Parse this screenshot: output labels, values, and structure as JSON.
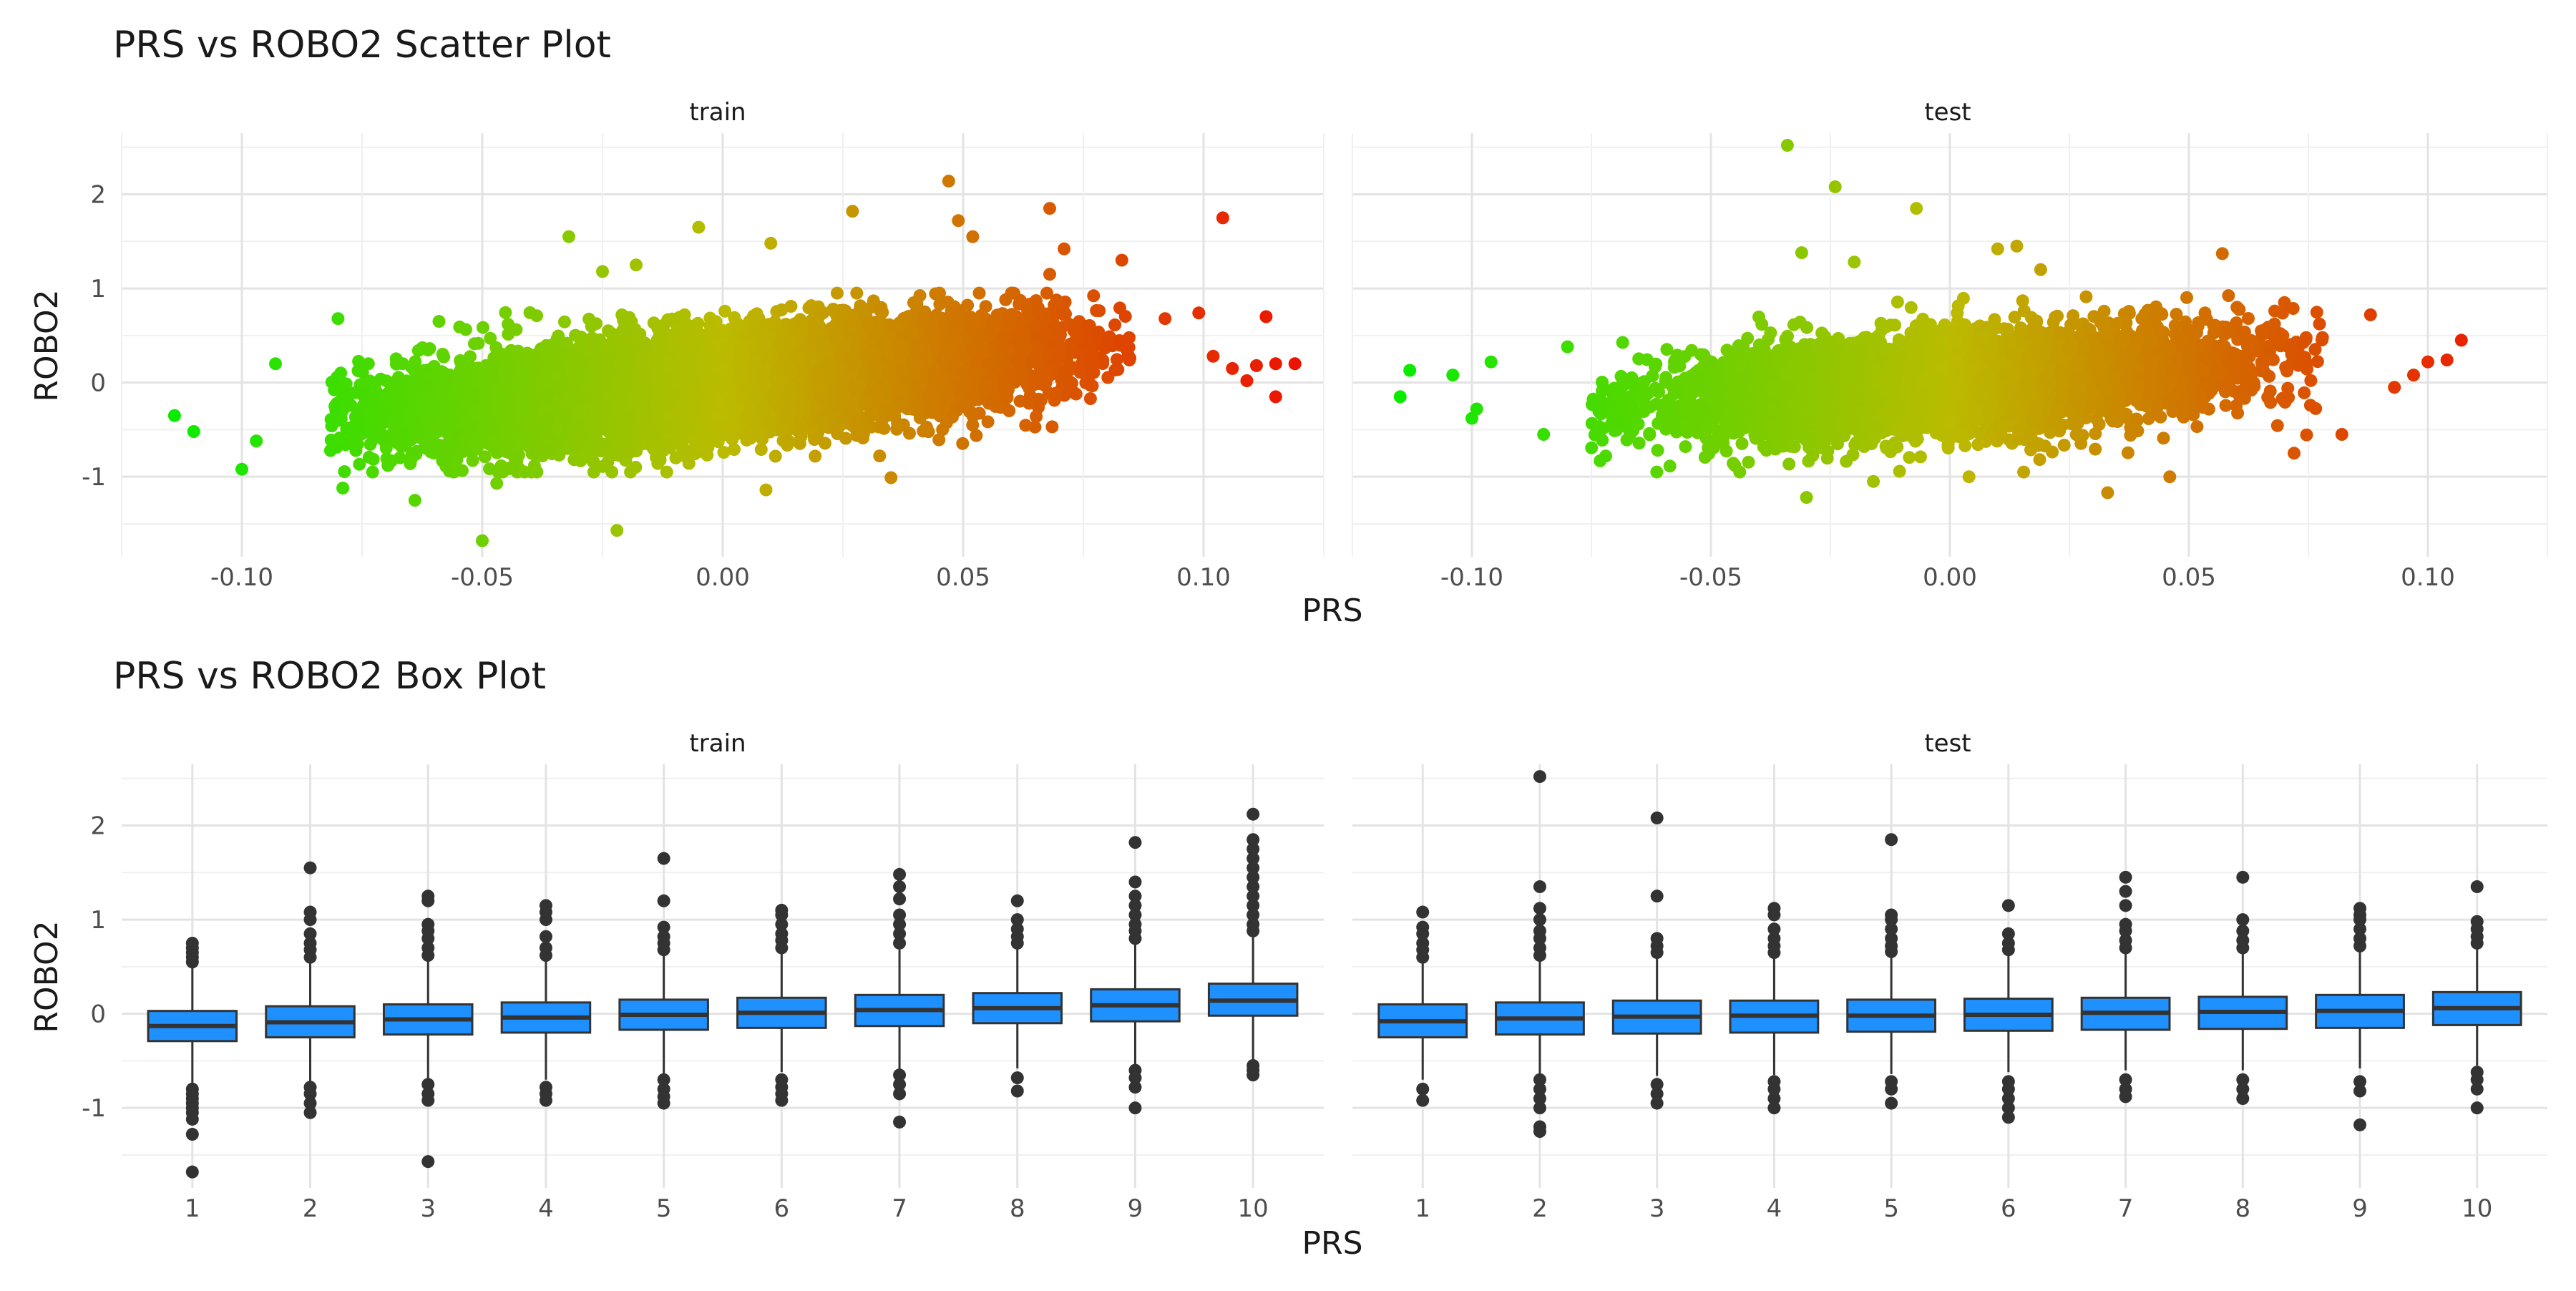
{
  "chart_data": [
    {
      "type": "scatter",
      "title": "PRS vs ROBO2 Scatter Plot",
      "xlabel": "PRS",
      "ylabel": "ROBO2",
      "xlim": [
        -0.125,
        0.125
      ],
      "ylim": [
        -1.85,
        2.65
      ],
      "x_ticks": [
        -0.1,
        -0.05,
        0.0,
        0.05,
        0.1
      ],
      "x_tick_labels": [
        "-0.10",
        "-0.05",
        "0.00",
        "0.05",
        "0.10"
      ],
      "y_ticks": [
        -1,
        0,
        1,
        2
      ],
      "y_tick_labels": [
        "-1",
        "0",
        "1",
        "2"
      ],
      "color_gradient": {
        "low": "#00ee00",
        "mid": "#bbbb00",
        "high": "#ee1100"
      },
      "grid": true,
      "facets": [
        {
          "label": "train",
          "cloud": {
            "n": 9000,
            "x_mean": 0.0,
            "x_sd": 0.033,
            "slope": 4.5,
            "y_sd": 0.27,
            "x_range": [
              -0.082,
              0.085
            ]
          },
          "notable_points": [
            {
              "x": -0.114,
              "y": -0.35
            },
            {
              "x": -0.11,
              "y": -0.52
            },
            {
              "x": -0.1,
              "y": -0.92
            },
            {
              "x": -0.097,
              "y": -0.62
            },
            {
              "x": -0.093,
              "y": 0.2
            },
            {
              "x": -0.08,
              "y": 0.68
            },
            {
              "x": -0.079,
              "y": -1.12
            },
            {
              "x": -0.064,
              "y": -1.25
            },
            {
              "x": -0.059,
              "y": 0.65
            },
            {
              "x": -0.047,
              "y": -1.07
            },
            {
              "x": -0.05,
              "y": -1.68
            },
            {
              "x": -0.032,
              "y": 1.55
            },
            {
              "x": -0.022,
              "y": -1.57
            },
            {
              "x": -0.025,
              "y": 1.18
            },
            {
              "x": -0.018,
              "y": 1.25
            },
            {
              "x": -0.005,
              "y": 1.65
            },
            {
              "x": 0.01,
              "y": 1.48
            },
            {
              "x": 0.009,
              "y": -1.14
            },
            {
              "x": 0.027,
              "y": 1.82
            },
            {
              "x": 0.035,
              "y": -1.01
            },
            {
              "x": 0.047,
              "y": 2.14
            },
            {
              "x": 0.049,
              "y": 1.72
            },
            {
              "x": 0.052,
              "y": 1.55
            },
            {
              "x": 0.068,
              "y": 1.85
            },
            {
              "x": 0.071,
              "y": 1.42
            },
            {
              "x": 0.068,
              "y": 1.15
            },
            {
              "x": 0.083,
              "y": 1.3
            },
            {
              "x": 0.092,
              "y": 0.68
            },
            {
              "x": 0.099,
              "y": 0.74
            },
            {
              "x": 0.104,
              "y": 1.75
            },
            {
              "x": 0.102,
              "y": 0.28
            },
            {
              "x": 0.106,
              "y": 0.15
            },
            {
              "x": 0.109,
              "y": 0.02
            },
            {
              "x": 0.111,
              "y": 0.18
            },
            {
              "x": 0.113,
              "y": 0.7
            },
            {
              "x": 0.115,
              "y": 0.2
            },
            {
              "x": 0.115,
              "y": -0.15
            },
            {
              "x": 0.119,
              "y": 0.2
            }
          ]
        },
        {
          "label": "test",
          "cloud": {
            "n": 4500,
            "x_mean": 0.0,
            "x_sd": 0.031,
            "slope": 3.5,
            "y_sd": 0.27,
            "x_range": [
              -0.075,
              0.078
            ]
          },
          "notable_points": [
            {
              "x": -0.115,
              "y": -0.15
            },
            {
              "x": -0.113,
              "y": 0.13
            },
            {
              "x": -0.104,
              "y": 0.08
            },
            {
              "x": -0.1,
              "y": -0.38
            },
            {
              "x": -0.099,
              "y": -0.28
            },
            {
              "x": -0.096,
              "y": 0.22
            },
            {
              "x": -0.085,
              "y": -0.55
            },
            {
              "x": -0.08,
              "y": 0.38
            },
            {
              "x": -0.072,
              "y": -0.78
            },
            {
              "x": -0.045,
              "y": -0.88
            },
            {
              "x": -0.034,
              "y": 2.52
            },
            {
              "x": -0.031,
              "y": 1.38
            },
            {
              "x": -0.024,
              "y": 2.08
            },
            {
              "x": -0.03,
              "y": -1.22
            },
            {
              "x": -0.02,
              "y": 1.28
            },
            {
              "x": -0.016,
              "y": -1.05
            },
            {
              "x": -0.007,
              "y": 1.85
            },
            {
              "x": 0.01,
              "y": 1.42
            },
            {
              "x": 0.014,
              "y": 1.45
            },
            {
              "x": 0.004,
              "y": -1.0
            },
            {
              "x": 0.019,
              "y": 1.2
            },
            {
              "x": 0.033,
              "y": -1.17
            },
            {
              "x": 0.046,
              "y": -1.0
            },
            {
              "x": 0.057,
              "y": 1.37
            },
            {
              "x": 0.07,
              "y": 0.85
            },
            {
              "x": 0.072,
              "y": -0.75
            },
            {
              "x": 0.082,
              "y": -0.55
            },
            {
              "x": 0.088,
              "y": 0.72
            },
            {
              "x": 0.093,
              "y": -0.05
            },
            {
              "x": 0.097,
              "y": 0.08
            },
            {
              "x": 0.1,
              "y": 0.22
            },
            {
              "x": 0.104,
              "y": 0.24
            },
            {
              "x": 0.107,
              "y": 0.45
            }
          ]
        }
      ]
    },
    {
      "type": "box",
      "title": "PRS vs ROBO2 Box Plot",
      "xlabel": "PRS",
      "ylabel": "ROBO2",
      "categories": [
        "1",
        "2",
        "3",
        "4",
        "5",
        "6",
        "7",
        "8",
        "9",
        "10"
      ],
      "ylim": [
        -1.85,
        2.65
      ],
      "y_ticks": [
        -1,
        0,
        1,
        2
      ],
      "y_tick_labels": [
        "-1",
        "0",
        "1",
        "2"
      ],
      "fill_color": "#1e90ff",
      "grid": true,
      "facets": [
        {
          "label": "train",
          "boxes": [
            {
              "q1": -0.29,
              "median": -0.13,
              "q3": 0.03,
              "whisker_low": -0.75,
              "whisker_high": 0.5,
              "outliers": [
                0.55,
                0.6,
                0.65,
                0.7,
                0.75,
                -0.8,
                -0.85,
                -0.9,
                -0.95,
                -1.0,
                -1.05,
                -1.12,
                -1.28,
                -1.68
              ]
            },
            {
              "q1": -0.25,
              "median": -0.09,
              "q3": 0.08,
              "whisker_low": -0.72,
              "whisker_high": 0.55,
              "outliers": [
                0.6,
                0.68,
                0.75,
                0.85,
                1.0,
                1.08,
                1.55,
                -0.78,
                -0.85,
                -0.95,
                -1.05
              ]
            },
            {
              "q1": -0.22,
              "median": -0.06,
              "q3": 0.1,
              "whisker_low": -0.7,
              "whisker_high": 0.58,
              "outliers": [
                0.62,
                0.7,
                0.8,
                0.88,
                0.95,
                1.2,
                1.25,
                -0.75,
                -0.85,
                -0.92,
                -1.57
              ]
            },
            {
              "q1": -0.2,
              "median": -0.04,
              "q3": 0.12,
              "whisker_low": -0.7,
              "whisker_high": 0.58,
              "outliers": [
                0.62,
                0.7,
                0.82,
                1.0,
                1.08,
                1.15,
                -0.78,
                -0.85,
                -0.92
              ]
            },
            {
              "q1": -0.17,
              "median": -0.01,
              "q3": 0.15,
              "whisker_low": -0.65,
              "whisker_high": 0.62,
              "outliers": [
                0.68,
                0.75,
                0.82,
                0.92,
                1.2,
                1.65,
                -0.7,
                -0.8,
                -0.88,
                -0.95
              ]
            },
            {
              "q1": -0.15,
              "median": 0.01,
              "q3": 0.17,
              "whisker_low": -0.62,
              "whisker_high": 0.65,
              "outliers": [
                0.7,
                0.78,
                0.85,
                0.95,
                1.05,
                1.1,
                -0.7,
                -0.78,
                -0.85,
                -0.92
              ]
            },
            {
              "q1": -0.13,
              "median": 0.04,
              "q3": 0.2,
              "whisker_low": -0.6,
              "whisker_high": 0.68,
              "outliers": [
                0.75,
                0.85,
                0.95,
                1.05,
                1.22,
                1.35,
                1.48,
                -0.65,
                -0.75,
                -0.85,
                -1.15
              ]
            },
            {
              "q1": -0.1,
              "median": 0.06,
              "q3": 0.22,
              "whisker_low": -0.58,
              "whisker_high": 0.7,
              "outliers": [
                0.75,
                0.82,
                0.9,
                1.0,
                1.2,
                -0.68,
                -0.82
              ]
            },
            {
              "q1": -0.08,
              "median": 0.09,
              "q3": 0.26,
              "whisker_low": -0.55,
              "whisker_high": 0.75,
              "outliers": [
                0.8,
                0.88,
                0.95,
                1.05,
                1.15,
                1.25,
                1.4,
                1.82,
                -0.6,
                -0.68,
                -0.78,
                -1.0
              ]
            },
            {
              "q1": -0.02,
              "median": 0.14,
              "q3": 0.32,
              "whisker_low": -0.5,
              "whisker_high": 0.82,
              "outliers": [
                0.88,
                0.95,
                1.05,
                1.15,
                1.25,
                1.35,
                1.45,
                1.55,
                1.65,
                1.75,
                1.85,
                2.12,
                -0.55,
                -0.6,
                -0.65
              ]
            }
          ]
        },
        {
          "label": "test",
          "boxes": [
            {
              "q1": -0.25,
              "median": -0.08,
              "q3": 0.1,
              "whisker_low": -0.7,
              "whisker_high": 0.55,
              "outliers": [
                0.6,
                0.68,
                0.75,
                0.85,
                0.92,
                1.08,
                -0.8,
                -0.92
              ]
            },
            {
              "q1": -0.22,
              "median": -0.05,
              "q3": 0.12,
              "whisker_low": -0.68,
              "whisker_high": 0.58,
              "outliers": [
                0.62,
                0.7,
                0.8,
                0.88,
                1.0,
                1.12,
                1.35,
                2.52,
                -0.7,
                -0.8,
                -0.9,
                -1.0,
                -1.2,
                -1.25
              ]
            },
            {
              "q1": -0.21,
              "median": -0.03,
              "q3": 0.14,
              "whisker_low": -0.66,
              "whisker_high": 0.6,
              "outliers": [
                0.65,
                0.72,
                0.8,
                1.25,
                2.08,
                -0.75,
                -0.85,
                -0.95
              ]
            },
            {
              "q1": -0.2,
              "median": -0.02,
              "q3": 0.14,
              "whisker_low": -0.65,
              "whisker_high": 0.6,
              "outliers": [
                0.65,
                0.72,
                0.8,
                0.9,
                1.05,
                1.12,
                -0.72,
                -0.8,
                -0.9,
                -1.0
              ]
            },
            {
              "q1": -0.19,
              "median": -0.02,
              "q3": 0.15,
              "whisker_low": -0.64,
              "whisker_high": 0.62,
              "outliers": [
                0.66,
                0.72,
                0.8,
                0.9,
                1.0,
                1.05,
                1.85,
                -0.72,
                -0.8,
                -0.95
              ]
            },
            {
              "q1": -0.18,
              "median": -0.01,
              "q3": 0.16,
              "whisker_low": -0.62,
              "whisker_high": 0.62,
              "outliers": [
                0.68,
                0.75,
                0.85,
                1.15,
                -0.72,
                -0.8,
                -0.9,
                -1.0,
                -1.1
              ]
            },
            {
              "q1": -0.17,
              "median": 0.01,
              "q3": 0.17,
              "whisker_low": -0.6,
              "whisker_high": 0.65,
              "outliers": [
                0.7,
                0.78,
                0.88,
                0.95,
                1.15,
                1.3,
                1.45,
                -0.7,
                -0.8,
                -0.88
              ]
            },
            {
              "q1": -0.16,
              "median": 0.02,
              "q3": 0.18,
              "whisker_low": -0.6,
              "whisker_high": 0.65,
              "outliers": [
                0.7,
                0.78,
                0.88,
                1.0,
                1.45,
                -0.7,
                -0.8,
                -0.9
              ]
            },
            {
              "q1": -0.15,
              "median": 0.03,
              "q3": 0.2,
              "whisker_low": -0.58,
              "whisker_high": 0.68,
              "outliers": [
                0.72,
                0.8,
                0.9,
                1.0,
                1.05,
                1.12,
                -0.72,
                -0.82,
                -1.18
              ]
            },
            {
              "q1": -0.12,
              "median": 0.06,
              "q3": 0.23,
              "whisker_low": -0.55,
              "whisker_high": 0.7,
              "outliers": [
                0.75,
                0.82,
                0.9,
                0.98,
                1.35,
                -0.62,
                -0.7,
                -0.8,
                -1.0
              ]
            }
          ]
        }
      ]
    }
  ]
}
